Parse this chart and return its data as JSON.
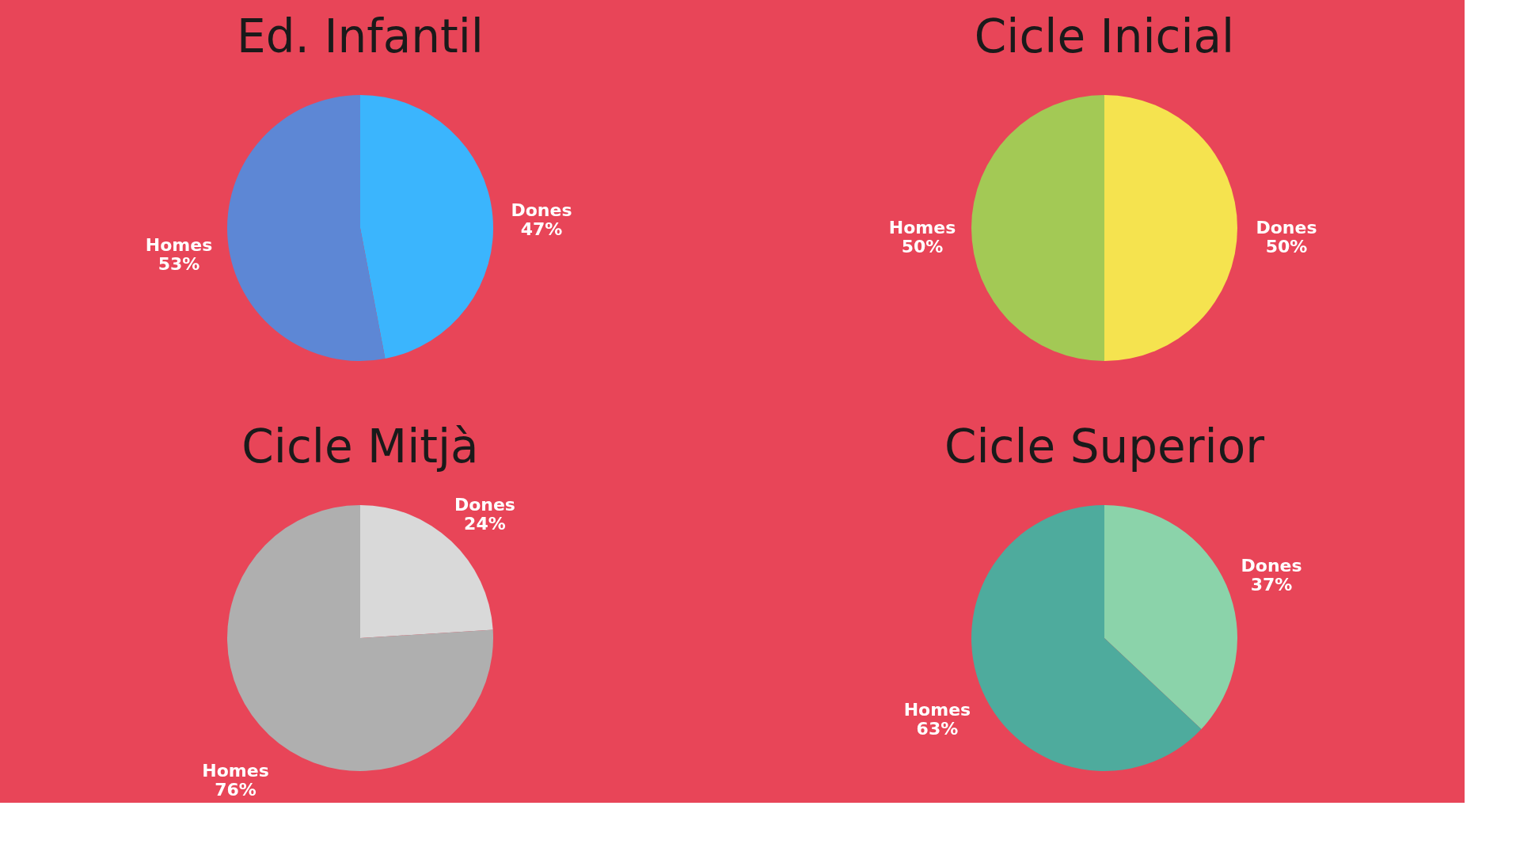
{
  "chart_data": [
    {
      "type": "pie",
      "title": "Ed. Infantil",
      "categories": [
        "Dones",
        "Homes"
      ],
      "values": [
        47,
        53
      ],
      "colors": [
        "#3bb5fd",
        "#5d87d5"
      ],
      "value_labels": [
        "47%",
        "53%"
      ],
      "legend": false
    },
    {
      "type": "pie",
      "title": "Cicle Inicial",
      "categories": [
        "Dones",
        "Homes"
      ],
      "values": [
        50,
        50
      ],
      "colors": [
        "#f5e34f",
        "#a3c955"
      ],
      "value_labels": [
        "50%",
        "50%"
      ],
      "legend": false
    },
    {
      "type": "pie",
      "title": "Cicle Mitjà",
      "categories": [
        "Dones",
        "Homes"
      ],
      "values": [
        24,
        76
      ],
      "colors": [
        "#d9d9d9",
        "#afafaf"
      ],
      "value_labels": [
        "24%",
        "76%"
      ],
      "legend": false
    },
    {
      "type": "pie",
      "title": "Cicle Superior",
      "categories": [
        "Dones",
        "Homes"
      ],
      "values": [
        37,
        63
      ],
      "colors": [
        "#8bd3aa",
        "#4eab9d"
      ],
      "value_labels": [
        "37%",
        "63%"
      ],
      "legend": false
    }
  ]
}
